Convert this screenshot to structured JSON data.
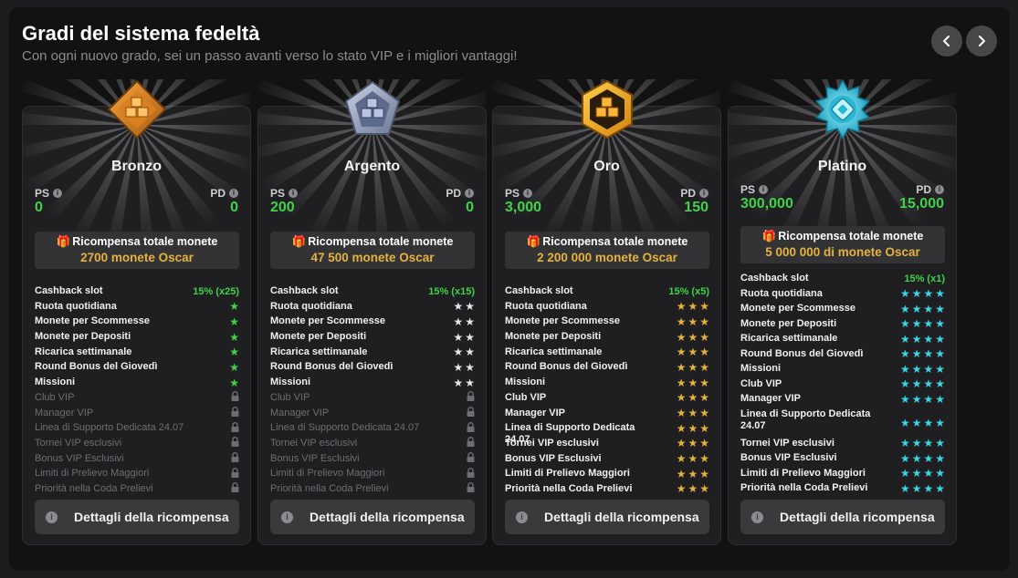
{
  "header": {
    "title": "Gradi del sistema fedeltà",
    "subtitle": "Con ogni nuovo grado, sei un passo avanti verso lo stato VIP e i migliori vantaggi!"
  },
  "nav": {
    "prev_icon": "chevron-left-icon",
    "next_icon": "chevron-right-icon"
  },
  "colors": {
    "green": "#3fd24a",
    "gold": "#e5b23c",
    "star_green": "#3fd24a",
    "star_silver": "#e6e6e6",
    "star_gold": "#e5b23c",
    "star_cyan": "#39d6e6",
    "locked": "#6e6e72"
  },
  "stat_labels": {
    "ps": "PS",
    "pd": "PD"
  },
  "reward_title": "Ricompensa totale monete",
  "details_label": "Dettagli della ricompensa",
  "tiers": [
    {
      "name": "Bronzo",
      "badge": "bronze-badge-icon",
      "ps": "0",
      "pd": "0",
      "reward": "2700 monete Oscar",
      "star_color": "#3fd24a",
      "perks": [
        {
          "name": "Cashback slot",
          "value": "15% (x25)"
        },
        {
          "name": "Ruota quotidiana",
          "stars": 1
        },
        {
          "name": "Monete per Scommesse",
          "stars": 1
        },
        {
          "name": "Monete per Depositi",
          "stars": 1
        },
        {
          "name": "Ricarica settimanale",
          "stars": 1
        },
        {
          "name": "Round Bonus del Giovedì",
          "stars": 1
        },
        {
          "name": "Missioni",
          "stars": 1
        },
        {
          "name": "Club VIP",
          "locked": true
        },
        {
          "name": "Manager VIP",
          "locked": true
        },
        {
          "name": "Linea di Supporto Dedicata 24.07",
          "locked": true
        },
        {
          "name": "Tornei VIP esclusivi",
          "locked": true
        },
        {
          "name": "Bonus VIP Esclusivi",
          "locked": true
        },
        {
          "name": "Limiti di Prelievo Maggiori",
          "locked": true
        },
        {
          "name": "Priorità nella Coda Prelievi",
          "locked": true
        }
      ]
    },
    {
      "name": "Argento",
      "badge": "silver-badge-icon",
      "ps": "200",
      "pd": "0",
      "reward": "47 500 monete Oscar",
      "star_color": "#e6e6e6",
      "perks": [
        {
          "name": "Cashback slot",
          "value": "15% (x15)"
        },
        {
          "name": "Ruota quotidiana",
          "stars": 2
        },
        {
          "name": "Monete per Scommesse",
          "stars": 2
        },
        {
          "name": "Monete per Depositi",
          "stars": 2
        },
        {
          "name": "Ricarica settimanale",
          "stars": 2
        },
        {
          "name": "Round Bonus del Giovedì",
          "stars": 2
        },
        {
          "name": "Missioni",
          "stars": 2
        },
        {
          "name": "Club VIP",
          "locked": true
        },
        {
          "name": "Manager VIP",
          "locked": true
        },
        {
          "name": "Linea di Supporto Dedicata 24.07",
          "locked": true
        },
        {
          "name": "Tornei VIP esclusivi",
          "locked": true
        },
        {
          "name": "Bonus VIP Esclusivi",
          "locked": true
        },
        {
          "name": "Limiti di Prelievo Maggiori",
          "locked": true
        },
        {
          "name": "Priorità nella Coda Prelievi",
          "locked": true
        }
      ]
    },
    {
      "name": "Oro",
      "badge": "gold-badge-icon",
      "ps": "3,000",
      "pd": "150",
      "reward": "2 200 000 monete Oscar",
      "star_color": "#e5b23c",
      "perks": [
        {
          "name": "Cashback slot",
          "value": "15% (x5)"
        },
        {
          "name": "Ruota quotidiana",
          "stars": 3
        },
        {
          "name": "Monete per Scommesse",
          "stars": 3
        },
        {
          "name": "Monete per Depositi",
          "stars": 3
        },
        {
          "name": "Ricarica settimanale",
          "stars": 3
        },
        {
          "name": "Round Bonus del Giovedì",
          "stars": 3
        },
        {
          "name": "Missioni",
          "stars": 3
        },
        {
          "name": "Club VIP",
          "stars": 3
        },
        {
          "name": "Manager VIP",
          "stars": 3
        },
        {
          "name": "Linea di Supporto Dedicata 24.07",
          "stars": 3
        },
        {
          "name": "Tornei VIP esclusivi",
          "stars": 3
        },
        {
          "name": "Bonus VIP Esclusivi",
          "stars": 3
        },
        {
          "name": "Limiti di Prelievo Maggiori",
          "stars": 3
        },
        {
          "name": "Priorità nella Coda Prelievi",
          "stars": 3
        }
      ]
    },
    {
      "name": "Platino",
      "badge": "platinum-badge-icon",
      "ps": "300,000",
      "pd": "15,000",
      "reward": "5 000 000 di monete Oscar",
      "star_color": "#39d6e6",
      "perks": [
        {
          "name": "Cashback slot",
          "value": "15% (x1)"
        },
        {
          "name": "Ruota quotidiana",
          "stars": 4
        },
        {
          "name": "Monete per Scommesse",
          "stars": 4
        },
        {
          "name": "Monete per Depositi",
          "stars": 4
        },
        {
          "name": "Ricarica settimanale",
          "stars": 4
        },
        {
          "name": "Round Bonus del Giovedì",
          "stars": 4
        },
        {
          "name": "Missioni",
          "stars": 4
        },
        {
          "name": "Club VIP",
          "stars": 4
        },
        {
          "name": "Manager VIP",
          "stars": 4
        },
        {
          "name": "Linea di Supporto Dedicata 24.07",
          "stars": 4
        },
        {
          "name": "Tornei VIP esclusivi",
          "stars": 4
        },
        {
          "name": "Bonus VIP Esclusivi",
          "stars": 4
        },
        {
          "name": "Limiti di Prelievo Maggiori",
          "stars": 4
        },
        {
          "name": "Priorità nella Coda Prelievi",
          "stars": 4
        }
      ]
    }
  ]
}
